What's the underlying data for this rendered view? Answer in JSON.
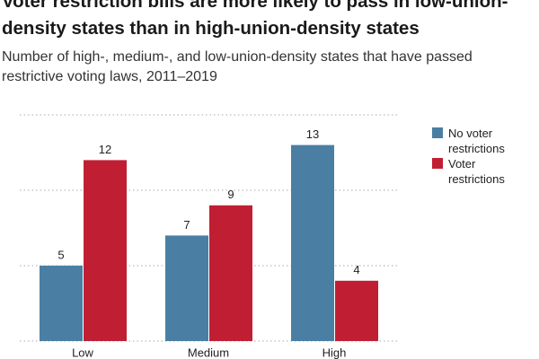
{
  "chart_data": {
    "type": "bar",
    "title": "Voter restriction bills are more likely to pass in low-union-density states than in high-union-density states",
    "subtitle": "Number of high-, medium-, and low-union-density states that have passed restrictive voting laws, 2011–2019",
    "categories": [
      "Low",
      "Medium",
      "High"
    ],
    "series": [
      {
        "name": "No voter restrictions",
        "color": "#4a7fa3",
        "values": [
          5,
          7,
          13
        ]
      },
      {
        "name": "Voter restrictions",
        "color": "#c01f33",
        "values": [
          12,
          9,
          4
        ]
      }
    ],
    "ylim": [
      0,
      15
    ],
    "yticks": [
      0,
      5,
      10,
      15
    ],
    "grid": true
  }
}
